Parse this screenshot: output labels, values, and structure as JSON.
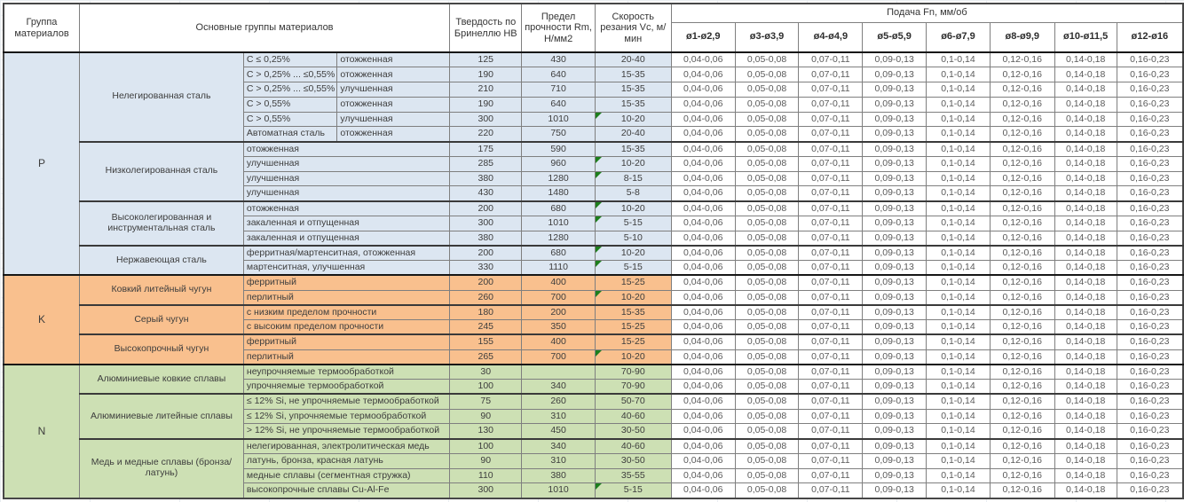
{
  "header": {
    "group": "Группа материалов",
    "materials": "Основные группы материалов",
    "hardness": "Твердость по Бринеллю HB",
    "strength": "Предел прочности Rm, Н/мм2",
    "speed": "Скорость резания Vc, м/мин",
    "feed": "Подача Fn, мм/об",
    "feed_diameters": [
      "ø1-ø2,9",
      "ø3-ø3,9",
      "ø4-ø4,9",
      "ø5-ø5,9",
      "ø6-ø7,9",
      "ø8-ø9,9",
      "ø10-ø11,5",
      "ø12-ø16"
    ]
  },
  "feed_values": [
    "0,04-0,06",
    "0,05-0,08",
    "0,07-0,11",
    "0,09-0,13",
    "0,1-0,14",
    "0,12-0,16",
    "0,14-0,18",
    "0,16-0,23"
  ],
  "colors": {
    "group_p": "#dce6f1",
    "group_k": "#f9c08e",
    "group_n": "#cde0b4",
    "error_indicator": "#1d7f1d"
  },
  "groups": [
    {
      "label": "P",
      "color_key": "group_p",
      "families": [
        {
          "name": "Нелегированная сталь",
          "split": true,
          "rows": [
            {
              "d1": "C ≤ 0,25%",
              "d2": "отожженная",
              "hb": "125",
              "rm": "430",
              "vc": "20-40",
              "flag": false
            },
            {
              "d1": "C > 0,25% ... ≤0,55%",
              "d2": "отожженная",
              "hb": "190",
              "rm": "640",
              "vc": "15-35",
              "flag": false
            },
            {
              "d1": "C > 0,25% ... ≤0,55%",
              "d2": "улучшенная",
              "hb": "210",
              "rm": "710",
              "vc": "15-35",
              "flag": false
            },
            {
              "d1": "C > 0,55%",
              "d2": "отожженная",
              "hb": "190",
              "rm": "640",
              "vc": "15-35",
              "flag": false
            },
            {
              "d1": "C > 0,55%",
              "d2": "улучшенная",
              "hb": "300",
              "rm": "1010",
              "vc": "10-20",
              "flag": true
            },
            {
              "d1": "Автоматная сталь",
              "d2": "отожженная",
              "hb": "220",
              "rm": "750",
              "vc": "20-40",
              "flag": false
            }
          ]
        },
        {
          "name": "Низколегированная сталь",
          "split": false,
          "rows": [
            {
              "d": "отожженная",
              "hb": "175",
              "rm": "590",
              "vc": "15-35",
              "flag": false
            },
            {
              "d": "улучшенная",
              "hb": "285",
              "rm": "960",
              "vc": "10-20",
              "flag": true
            },
            {
              "d": "улучшенная",
              "hb": "380",
              "rm": "1280",
              "vc": "8-15",
              "flag": true
            },
            {
              "d": "улучшенная",
              "hb": "430",
              "rm": "1480",
              "vc": "5-8",
              "flag": false
            }
          ]
        },
        {
          "name": "Высоколегированная и инструментальная сталь",
          "split": false,
          "rows": [
            {
              "d": "отожженная",
              "hb": "200",
              "rm": "680",
              "vc": "10-20",
              "flag": true
            },
            {
              "d": "закаленная и отпущенная",
              "hb": "300",
              "rm": "1010",
              "vc": "5-15",
              "flag": true
            },
            {
              "d": "закаленная и отпущенная",
              "hb": "380",
              "rm": "1280",
              "vc": "5-10",
              "flag": false
            }
          ]
        },
        {
          "name": "Нержавеющая сталь",
          "split": false,
          "rows": [
            {
              "d": "ферритная/мартенситная, отожженная",
              "hb": "200",
              "rm": "680",
              "vc": "10-20",
              "flag": true
            },
            {
              "d": "мартенситная, улучшенная",
              "hb": "330",
              "rm": "1110",
              "vc": "5-15",
              "flag": true
            }
          ]
        }
      ]
    },
    {
      "label": "K",
      "color_key": "group_k",
      "families": [
        {
          "name": "Ковкий литейный чугун",
          "split": false,
          "rows": [
            {
              "d": "ферритный",
              "hb": "200",
              "rm": "400",
              "vc": "15-25",
              "flag": false
            },
            {
              "d": "перлитный",
              "hb": "260",
              "rm": "700",
              "vc": "10-20",
              "flag": true
            }
          ]
        },
        {
          "name": "Серый чугун",
          "split": false,
          "rows": [
            {
              "d": "с низким пределом прочности",
              "hb": "180",
              "rm": "200",
              "vc": "15-35",
              "flag": false
            },
            {
              "d": "с высоким пределом прочности",
              "hb": "245",
              "rm": "350",
              "vc": "15-25",
              "flag": false
            }
          ]
        },
        {
          "name": "Высокопрочный чугун",
          "split": false,
          "rows": [
            {
              "d": "ферритный",
              "hb": "155",
              "rm": "400",
              "vc": "15-25",
              "flag": false
            },
            {
              "d": "перлитный",
              "hb": "265",
              "rm": "700",
              "vc": "10-20",
              "flag": true
            }
          ]
        }
      ]
    },
    {
      "label": "N",
      "color_key": "group_n",
      "families": [
        {
          "name": "Алюминиевые ковкие сплавы",
          "split": false,
          "rows": [
            {
              "d": "неупрочняемые термообработкой",
              "hb": "30",
              "rm": "",
              "vc": "70-90",
              "flag": false
            },
            {
              "d": "упрочняемые термообработкой",
              "hb": "100",
              "rm": "340",
              "vc": "70-90",
              "flag": false
            }
          ]
        },
        {
          "name": "Алюминиевые литейные сплавы",
          "split": false,
          "rows": [
            {
              "d": "≤ 12% Si, не упрочняемые термообработкой",
              "hb": "75",
              "rm": "260",
              "vc": "50-70",
              "flag": false
            },
            {
              "d": "≤ 12% Si, упрочняемые термообработкой",
              "hb": "90",
              "rm": "310",
              "vc": "40-60",
              "flag": false
            },
            {
              "d": "> 12% Si, не упрочняемые термообработкой",
              "hb": "130",
              "rm": "450",
              "vc": "30-50",
              "flag": false
            }
          ]
        },
        {
          "name": "Медь и медные сплавы (бронза/латунь)",
          "split": false,
          "rows": [
            {
              "d": "нелегированная, электролитическая медь",
              "hb": "100",
              "rm": "340",
              "vc": "40-60",
              "flag": false
            },
            {
              "d": "латунь, бронза, красная латунь",
              "hb": "90",
              "rm": "310",
              "vc": "30-50",
              "flag": false
            },
            {
              "d": "медные сплавы (сегментная стружка)",
              "hb": "110",
              "rm": "380",
              "vc": "35-55",
              "flag": false
            },
            {
              "d": "высокопрочные сплавы Cu-Al-Fe",
              "hb": "300",
              "rm": "1010",
              "vc": "5-15",
              "flag": true
            }
          ]
        }
      ]
    }
  ]
}
